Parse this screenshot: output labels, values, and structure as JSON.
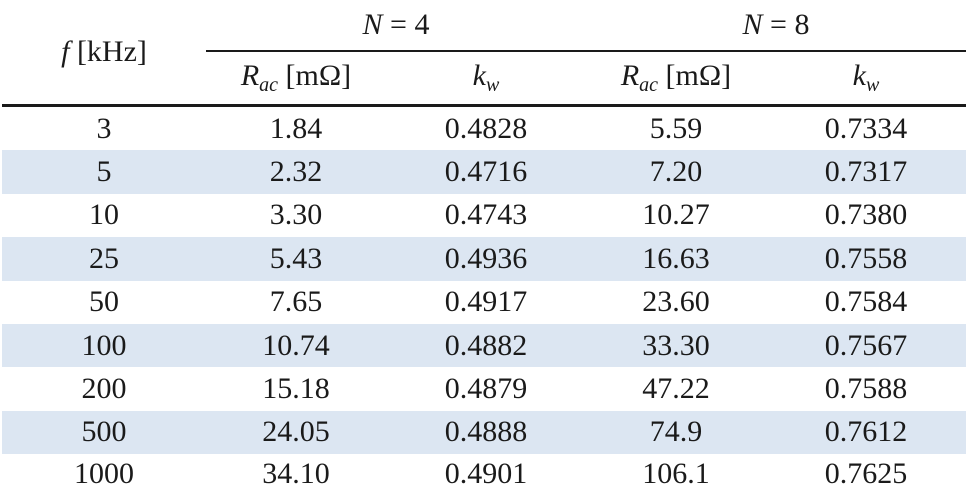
{
  "header": {
    "freq_var": "f",
    "freq_unit": "[kHz]",
    "group1": {
      "var": "N",
      "rel": " = 4"
    },
    "group2": {
      "var": "N",
      "rel": " = 8"
    },
    "rac_var": "R",
    "rac_sub": "ac",
    "rac_unit": " [mΩ]",
    "kw_var": "k",
    "kw_sub": "w"
  },
  "rows": [
    {
      "f": "3",
      "rac4": "1.84",
      "kw4": "0.4828",
      "rac8": "5.59",
      "kw8": "0.7334"
    },
    {
      "f": "5",
      "rac4": "2.32",
      "kw4": "0.4716",
      "rac8": "7.20",
      "kw8": "0.7317"
    },
    {
      "f": "10",
      "rac4": "3.30",
      "kw4": "0.4743",
      "rac8": "10.27",
      "kw8": "0.7380"
    },
    {
      "f": "25",
      "rac4": "5.43",
      "kw4": "0.4936",
      "rac8": "16.63",
      "kw8": "0.7558"
    },
    {
      "f": "50",
      "rac4": "7.65",
      "kw4": "0.4917",
      "rac8": "23.60",
      "kw8": "0.7584"
    },
    {
      "f": "100",
      "rac4": "10.74",
      "kw4": "0.4882",
      "rac8": "33.30",
      "kw8": "0.7567"
    },
    {
      "f": "200",
      "rac4": "15.18",
      "kw4": "0.4879",
      "rac8": "47.22",
      "kw8": "0.7588"
    },
    {
      "f": "500",
      "rac4": "24.05",
      "kw4": "0.4888",
      "rac8": "74.9",
      "kw8": "0.7612"
    },
    {
      "f": "1000",
      "rac4": "34.10",
      "kw4": "0.4901",
      "rac8": "106.1",
      "kw8": "0.7625"
    }
  ],
  "colors": {
    "stripe": "#dce6f2",
    "rule": "#1a1a1a"
  }
}
